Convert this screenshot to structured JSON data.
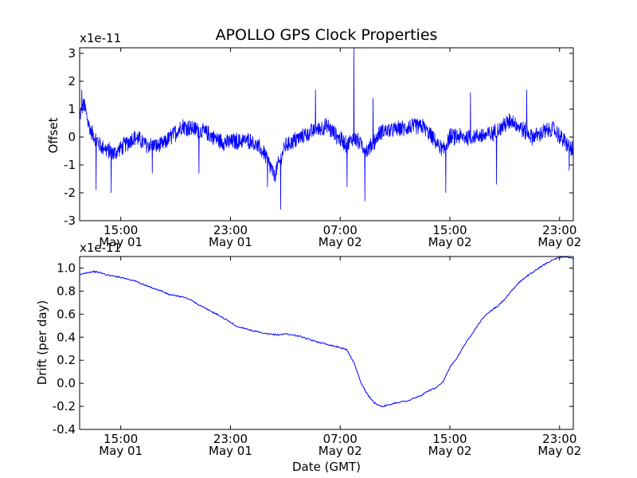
{
  "chart_data": [
    {
      "type": "line",
      "title": "APOLLO GPS Clock Properties",
      "xlabel": "",
      "ylabel": "Offset",
      "y_multiplier": "x1e-11",
      "ylim": [
        -3,
        3.2
      ],
      "yticks": [
        "3",
        "2",
        "1",
        "0",
        "-1",
        "-2",
        "-3"
      ],
      "ytick_values": [
        3,
        2,
        1,
        0,
        -1,
        -2,
        -3
      ],
      "xlim_hours": [
        0,
        36
      ],
      "xticks": [
        {
          "time": "15:00",
          "date": "May 01",
          "hours": 3
        },
        {
          "time": "23:00",
          "date": "May 01",
          "hours": 11
        },
        {
          "time": "07:00",
          "date": "May 02",
          "hours": 19
        },
        {
          "time": "15:00",
          "date": "May 02",
          "hours": 27
        },
        {
          "time": "23:00",
          "date": "May 02",
          "hours": 35
        }
      ],
      "series": [
        {
          "name": "Offset",
          "color": "#0000ff",
          "noise_amplitude": 0.4,
          "baseline": [
            [
              0,
              0.7
            ],
            [
              0.3,
              1.2
            ],
            [
              0.8,
              0.2
            ],
            [
              1.5,
              -0.3
            ],
            [
              2.5,
              -0.6
            ],
            [
              4,
              0.0
            ],
            [
              5,
              -0.3
            ],
            [
              6,
              -0.3
            ],
            [
              7.5,
              0.4
            ],
            [
              9,
              0.2
            ],
            [
              10.5,
              -0.2
            ],
            [
              12.5,
              -0.1
            ],
            [
              13.5,
              -0.6
            ],
            [
              14.2,
              -1.4
            ],
            [
              15,
              -0.3
            ],
            [
              16.5,
              0.1
            ],
            [
              18,
              0.4
            ],
            [
              19.5,
              -0.3
            ],
            [
              20,
              0.0
            ],
            [
              21,
              -0.5
            ],
            [
              22,
              0.2
            ],
            [
              23.5,
              0.3
            ],
            [
              25,
              0.4
            ],
            [
              26.5,
              -0.5
            ],
            [
              27,
              0.0
            ],
            [
              28.5,
              0.0
            ],
            [
              30,
              0.1
            ],
            [
              31.5,
              0.6
            ],
            [
              33,
              0.0
            ],
            [
              34.5,
              0.3
            ],
            [
              36,
              -0.5
            ]
          ],
          "spikes": [
            {
              "hours": 0.15,
              "value": 1.7
            },
            {
              "hours": 1.2,
              "value": -1.9
            },
            {
              "hours": 2.3,
              "value": -2.0
            },
            {
              "hours": 5.3,
              "value": -1.3
            },
            {
              "hours": 8.7,
              "value": -1.3
            },
            {
              "hours": 13.7,
              "value": -1.8
            },
            {
              "hours": 14.65,
              "value": -2.6
            },
            {
              "hours": 17.2,
              "value": 1.7
            },
            {
              "hours": 19.5,
              "value": -1.8
            },
            {
              "hours": 20.0,
              "value": 3.2
            },
            {
              "hours": 20.8,
              "value": -2.3
            },
            {
              "hours": 21.4,
              "value": 1.4
            },
            {
              "hours": 26.7,
              "value": -2.0
            },
            {
              "hours": 28.5,
              "value": 1.6
            },
            {
              "hours": 30.4,
              "value": -1.7
            },
            {
              "hours": 32.6,
              "value": 1.7
            },
            {
              "hours": 35.7,
              "value": -1.2
            }
          ]
        }
      ]
    },
    {
      "type": "line",
      "title": "",
      "xlabel": "Date (GMT)",
      "ylabel": "Drift (per day)",
      "y_multiplier": "x1e-11",
      "ylim": [
        -0.4,
        1.1
      ],
      "yticks": [
        "1.0",
        "0.8",
        "0.6",
        "0.4",
        "0.2",
        "0.0",
        "-0.2",
        "-0.4"
      ],
      "ytick_values": [
        1.0,
        0.8,
        0.6,
        0.4,
        0.2,
        0.0,
        -0.2,
        -0.4
      ],
      "xlim_hours": [
        0,
        36
      ],
      "xticks": [
        {
          "time": "15:00",
          "date": "May 01",
          "hours": 3
        },
        {
          "time": "23:00",
          "date": "May 01",
          "hours": 11
        },
        {
          "time": "07:00",
          "date": "May 02",
          "hours": 19
        },
        {
          "time": "15:00",
          "date": "May 02",
          "hours": 27
        },
        {
          "time": "23:00",
          "date": "May 02",
          "hours": 35
        }
      ],
      "series": [
        {
          "name": "Drift",
          "color": "#0000ff",
          "noise_amplitude": 0.006,
          "points": [
            [
              0,
              0.94
            ],
            [
              0.5,
              0.96
            ],
            [
              1,
              0.97
            ],
            [
              1.5,
              0.96
            ],
            [
              2,
              0.94
            ],
            [
              3,
              0.92
            ],
            [
              4,
              0.89
            ],
            [
              5,
              0.84
            ],
            [
              6,
              0.8
            ],
            [
              6.5,
              0.77
            ],
            [
              7.5,
              0.75
            ],
            [
              8,
              0.73
            ],
            [
              9,
              0.66
            ],
            [
              10,
              0.6
            ],
            [
              11,
              0.53
            ],
            [
              11.5,
              0.49
            ],
            [
              12,
              0.48
            ],
            [
              12.5,
              0.46
            ],
            [
              13.5,
              0.43
            ],
            [
              14.5,
              0.42
            ],
            [
              15,
              0.43
            ],
            [
              16,
              0.41
            ],
            [
              17,
              0.37
            ],
            [
              18,
              0.34
            ],
            [
              19,
              0.31
            ],
            [
              19.5,
              0.29
            ],
            [
              20,
              0.18
            ],
            [
              20.5,
              0.01
            ],
            [
              21,
              -0.1
            ],
            [
              21.5,
              -0.17
            ],
            [
              22,
              -0.2
            ],
            [
              22.5,
              -0.19
            ],
            [
              23,
              -0.17
            ],
            [
              24,
              -0.15
            ],
            [
              25,
              -0.1
            ],
            [
              25.5,
              -0.06
            ],
            [
              26,
              -0.04
            ],
            [
              26.5,
              0.01
            ],
            [
              27,
              0.14
            ],
            [
              27.5,
              0.22
            ],
            [
              28,
              0.32
            ],
            [
              28.5,
              0.41
            ],
            [
              29,
              0.5
            ],
            [
              29.5,
              0.58
            ],
            [
              30,
              0.63
            ],
            [
              30.5,
              0.67
            ],
            [
              31,
              0.73
            ],
            [
              31.5,
              0.8
            ],
            [
              32,
              0.87
            ],
            [
              32.5,
              0.92
            ],
            [
              33,
              0.96
            ],
            [
              33.5,
              1.0
            ],
            [
              34,
              1.04
            ],
            [
              34.5,
              1.07
            ],
            [
              35,
              1.09
            ],
            [
              35.5,
              1.1
            ],
            [
              36,
              1.08
            ]
          ]
        }
      ]
    }
  ]
}
